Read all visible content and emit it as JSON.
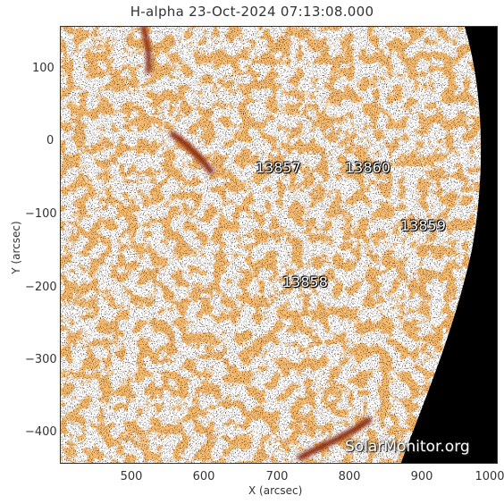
{
  "title": "H-alpha 23-Oct-2024 07:13:08.000",
  "xlabel": "X (arcsec)",
  "ylabel": "Y (arcsec)",
  "xticks": [
    "500",
    "600",
    "700",
    "800",
    "900",
    "1000"
  ],
  "yticks": [
    "100",
    "0",
    "−100",
    "−200",
    "−300",
    "−400"
  ],
  "regions": [
    "13857",
    "13860",
    "13859",
    "13858"
  ],
  "watermark": "SolarMonitor.org",
  "colors": {
    "surface": "#f0822a",
    "dark": "#8a2a10",
    "space": "#000000"
  }
}
